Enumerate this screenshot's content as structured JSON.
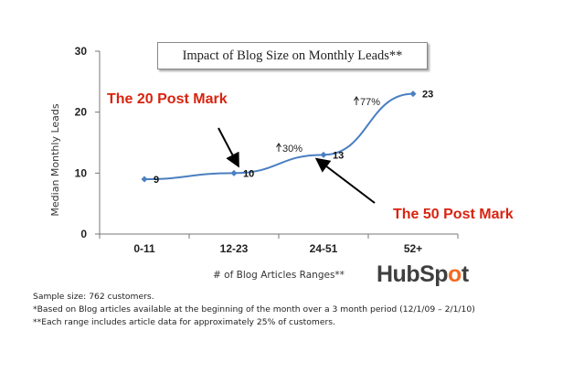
{
  "chart_data": {
    "type": "line",
    "title": "Impact of Blog Size on Monthly Leads**",
    "xlabel": "# of Blog Articles Ranges**",
    "ylabel": "Median Monthly Leads",
    "categories": [
      "0-11",
      "12-23",
      "24-51",
      "52+"
    ],
    "values": [
      9,
      10,
      13,
      23
    ],
    "ylim": [
      0,
      30
    ],
    "yticks": [
      0,
      10,
      20,
      30
    ],
    "series_color": "#4a7fc1",
    "grid": false,
    "annotations": {
      "pct_30": "30%",
      "pct_77": "77%",
      "post20": "The 20 Post Mark",
      "post50": "The 50 Post Mark",
      "annotation_color": "#d9230f"
    }
  },
  "brand": {
    "logo_text_start": "HubSp",
    "logo_text_o": "o",
    "logo_text_end": "t",
    "accent_color": "#f26b21"
  },
  "notes": [
    "Sample size: 762 customers.",
    "*Based on Blog articles available at the beginning of the month over a 3 month period  (12/1/09 – 2/1/10)",
    "**Each range includes article data for approximately 25% of customers."
  ]
}
